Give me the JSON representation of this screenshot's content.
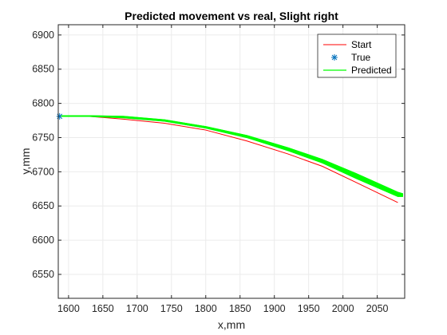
{
  "chart_data": {
    "type": "line",
    "title": "Predicted movement vs real, Slight right",
    "xlabel": "x,mm",
    "ylabel": "y,mm",
    "xlim": [
      1585,
      2090
    ],
    "ylim": [
      6515,
      6915
    ],
    "xticks": [
      "1600",
      "1650",
      "1700",
      "1750",
      "1800",
      "1850",
      "1900",
      "1950",
      "2000",
      "2050"
    ],
    "yticks": [
      "6550",
      "6600",
      "6650",
      "6700",
      "6750",
      "6800",
      "6850",
      "6900"
    ],
    "xtick_values": [
      1600,
      1650,
      1700,
      1750,
      1800,
      1850,
      1900,
      1950,
      2000,
      2050
    ],
    "ytick_values": [
      6550,
      6600,
      6650,
      6700,
      6750,
      6800,
      6850,
      6900
    ],
    "grid": true,
    "legend_position": "top-right",
    "series": [
      {
        "name": "Start",
        "style": "line",
        "color": "#ff0000",
        "x": [
          1590,
          1630,
          1680,
          1740,
          1800,
          1860,
          1920,
          1970,
          2020,
          2080
        ],
        "y": [
          6781,
          6781,
          6777,
          6771,
          6761,
          6745,
          6726,
          6708,
          6684,
          6655
        ]
      },
      {
        "name": "True",
        "style": "marker",
        "marker": "asterisk",
        "color": "#0072bd",
        "x": [
          1587
        ],
        "y": [
          6781
        ]
      },
      {
        "name": "Predicted",
        "style": "band",
        "color": "#00ff00",
        "x": [
          1590,
          1630,
          1680,
          1740,
          1800,
          1860,
          1920,
          1970,
          2020,
          2080,
          2087
        ],
        "y_upper": [
          6782,
          6782,
          6781,
          6776,
          6766,
          6753,
          6735,
          6718,
          6697,
          6670,
          6668
        ],
        "y_lower": [
          6781,
          6781,
          6779,
          6774,
          6764,
          6750,
          6731,
          6713,
          6690,
          6664,
          6664
        ]
      }
    ]
  }
}
